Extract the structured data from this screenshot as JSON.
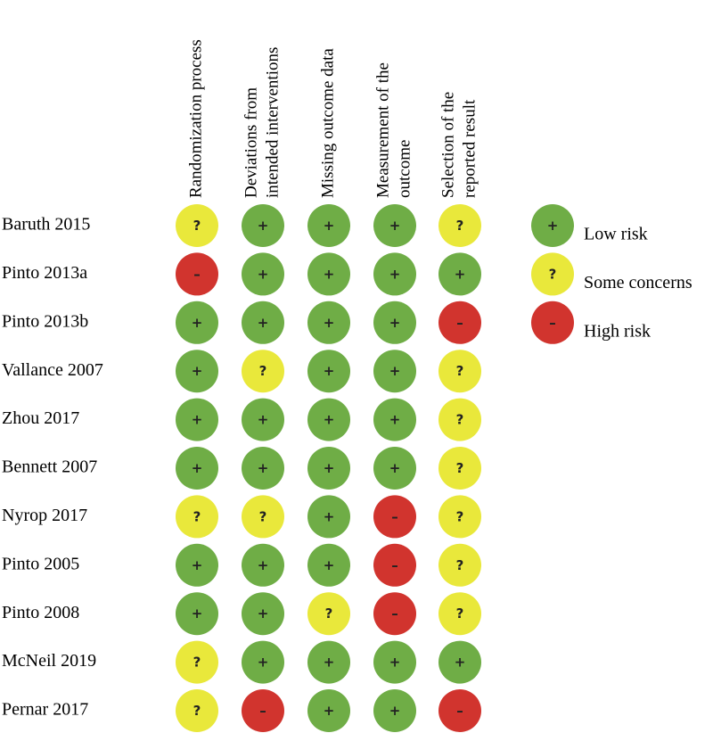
{
  "domains": [
    [
      "Randomization process"
    ],
    [
      "Deviations from",
      "intended interventions"
    ],
    [
      "Missing outcome data"
    ],
    [
      "Measurement of the",
      "outcome"
    ],
    [
      "Selection of the",
      "reported result"
    ]
  ],
  "studies": [
    {
      "name": "Baruth 2015",
      "judgments": [
        "?",
        "+",
        "+",
        "+",
        "?"
      ]
    },
    {
      "name": "Pinto 2013a",
      "judgments": [
        "–",
        "+",
        "+",
        "+",
        "+"
      ]
    },
    {
      "name": "Pinto 2013b",
      "judgments": [
        "+",
        "+",
        "+",
        "+",
        "–"
      ]
    },
    {
      "name": "Vallance 2007",
      "judgments": [
        "+",
        "?",
        "+",
        "+",
        "?"
      ]
    },
    {
      "name": "Zhou 2017",
      "judgments": [
        "+",
        "+",
        "+",
        "+",
        "?"
      ]
    },
    {
      "name": "Bennett 2007",
      "judgments": [
        "+",
        "+",
        "+",
        "+",
        "?"
      ]
    },
    {
      "name": "Nyrop 2017",
      "judgments": [
        "?",
        "?",
        "+",
        "–",
        "?"
      ]
    },
    {
      "name": "Pinto 2005",
      "judgments": [
        "+",
        "+",
        "+",
        "–",
        "?"
      ]
    },
    {
      "name": "Pinto 2008",
      "judgments": [
        "+",
        "+",
        "?",
        "–",
        "?"
      ]
    },
    {
      "name": "McNeil 2019",
      "judgments": [
        "?",
        "+",
        "+",
        "+",
        "+"
      ]
    },
    {
      "name": "Pernar 2017",
      "judgments": [
        "?",
        "–",
        "+",
        "+",
        "–"
      ]
    }
  ],
  "legend": [
    {
      "symbol": "+",
      "label": "Low risk",
      "color": "#6fad46"
    },
    {
      "symbol": "?",
      "label": "Some concerns",
      "color": "#e9e83b"
    },
    {
      "symbol": "–",
      "label": "High risk",
      "color": "#d1342e"
    }
  ]
}
